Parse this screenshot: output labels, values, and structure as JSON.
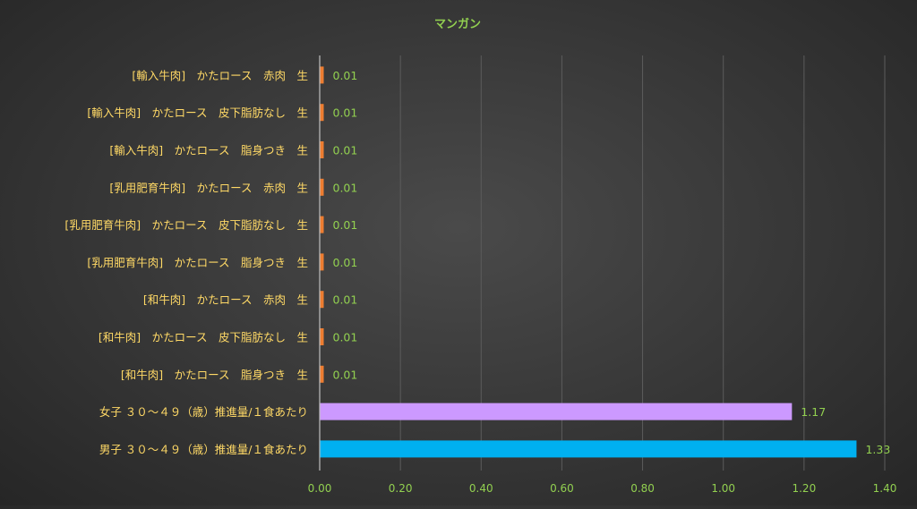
{
  "chart_data": {
    "type": "bar",
    "orientation": "horizontal",
    "title": "マンガン",
    "xlabel": "",
    "ylabel": "",
    "xlim": [
      0,
      1.4
    ],
    "xticks": [
      "0.00",
      "0.20",
      "0.40",
      "0.60",
      "0.80",
      "1.00",
      "1.20",
      "1.40"
    ],
    "categories": [
      "[輸入牛肉]　かたロース　赤肉　生",
      "[輸入牛肉]　かたロース　皮下脂肪なし　生",
      "[輸入牛肉]　かたロース　脂身つき　生",
      "[乳用肥育牛肉]　かたロース　赤肉　生",
      "[乳用肥育牛肉]　かたロース　皮下脂肪なし　生",
      "[乳用肥育牛肉]　かたロース　脂身つき　生",
      "[和牛肉]　かたロース　赤肉　生",
      "[和牛肉]　かたロース　皮下脂肪なし　生",
      "[和牛肉]　かたロース　脂身つき　生",
      "女子 ３０～４９（歳）推進量/１食あたり",
      "男子 ３０～４９（歳）推進量/１食あたり"
    ],
    "values": [
      0.01,
      0.01,
      0.01,
      0.01,
      0.01,
      0.01,
      0.01,
      0.01,
      0.01,
      1.17,
      1.33
    ],
    "data_labels": [
      "0.01",
      "0.01",
      "0.01",
      "0.01",
      "0.01",
      "0.01",
      "0.01",
      "0.01",
      "0.01",
      "1.17",
      "1.33"
    ],
    "bar_colors": [
      "#ed7d31",
      "#ed7d31",
      "#ed7d31",
      "#ed7d31",
      "#ed7d31",
      "#ed7d31",
      "#ed7d31",
      "#ed7d31",
      "#ed7d31",
      "#cc99ff",
      "#00b0f0"
    ],
    "grid": true,
    "legend": "none"
  },
  "colors": {
    "title": "#92d050",
    "category_label": "#ffd966",
    "tick_label": "#92d050",
    "data_label": "#92d050",
    "gridline": "#5c5c5c",
    "axis": "#bfbfbf"
  }
}
